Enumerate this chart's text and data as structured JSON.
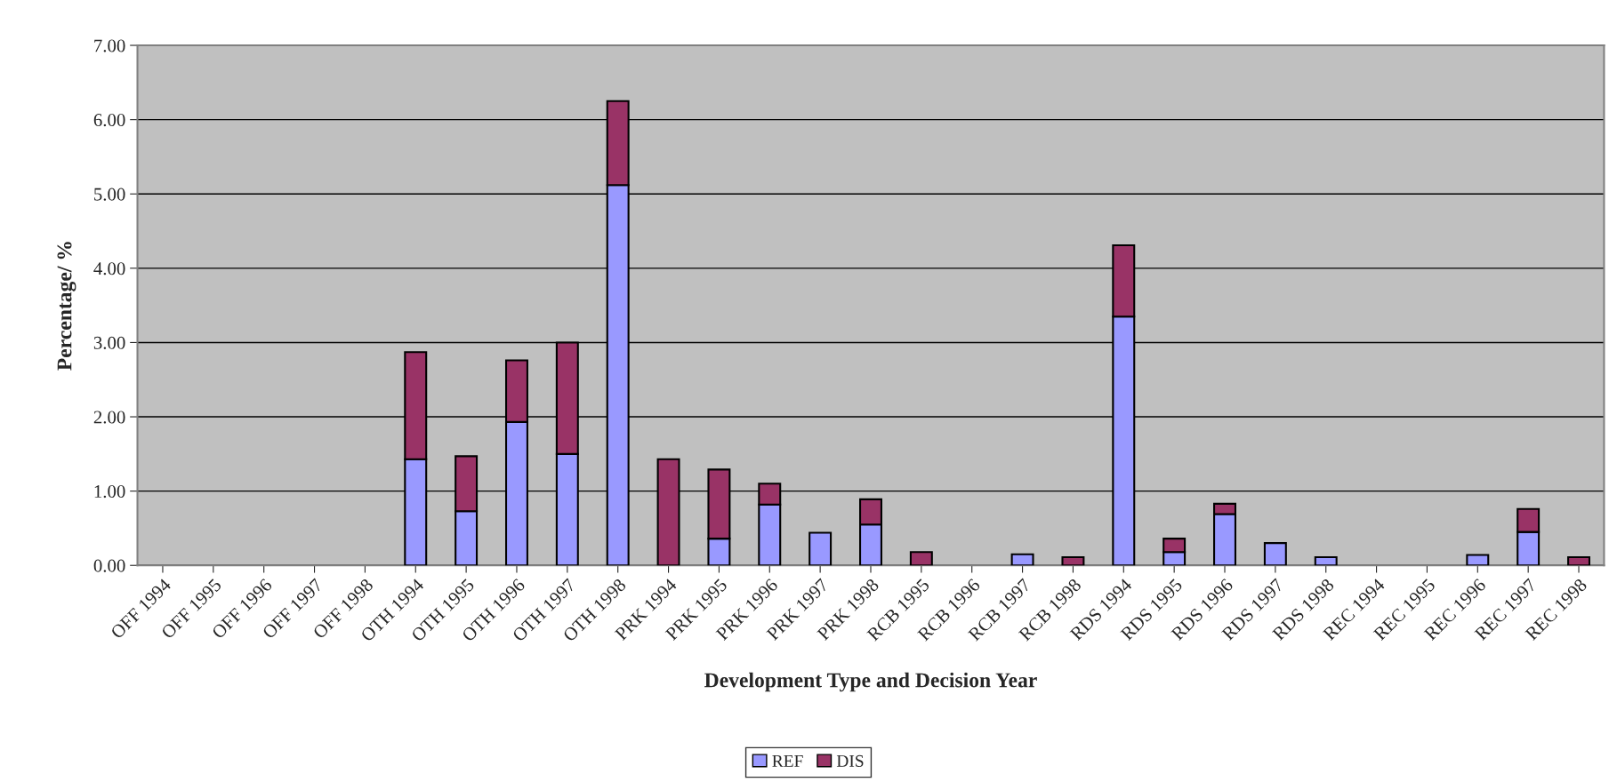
{
  "chart_data": {
    "type": "bar",
    "stacked": true,
    "xlabel": "Development Type and Decision Year",
    "ylabel": "Percentage/ %",
    "categories": [
      "OFF 1994",
      "OFF 1995",
      "OFF 1996",
      "OFF 1997",
      "OFF 1998",
      "OTH 1994",
      "OTH 1995",
      "OTH 1996",
      "OTH 1997",
      "OTH 1998",
      "PRK 1994",
      "PRK 1995",
      "PRK 1996",
      "PRK 1997",
      "PRK 1998",
      "RCB 1995",
      "RCB 1996",
      "RCB 1997",
      "RCB 1998",
      "RDS 1994",
      "RDS 1995",
      "RDS 1996",
      "RDS 1997",
      "RDS 1998",
      "REC 1994",
      "REC 1995",
      "REC 1996",
      "REC 1997",
      "REC 1998"
    ],
    "series": [
      {
        "name": "REF",
        "color": "#9999ff",
        "values": [
          null,
          null,
          null,
          null,
          null,
          1.43,
          0.73,
          1.93,
          1.5,
          5.12,
          null,
          0.36,
          0.82,
          0.44,
          0.55,
          null,
          null,
          0.15,
          null,
          3.35,
          0.18,
          0.69,
          0.3,
          0.11,
          null,
          null,
          0.14,
          0.45,
          null
        ]
      },
      {
        "name": "DIS",
        "color": "#993366",
        "values": [
          null,
          null,
          null,
          null,
          null,
          1.44,
          0.74,
          0.83,
          1.5,
          1.13,
          1.43,
          0.93,
          0.28,
          null,
          0.34,
          0.18,
          null,
          null,
          0.11,
          0.96,
          0.18,
          0.14,
          null,
          null,
          null,
          null,
          null,
          0.31,
          0.11
        ]
      }
    ],
    "ylim": [
      0,
      7
    ],
    "yticks": [
      {
        "value": 0,
        "label": "0.00"
      },
      {
        "value": 1,
        "label": "1.00"
      },
      {
        "value": 2,
        "label": "2.00"
      },
      {
        "value": 3,
        "label": "3.00"
      },
      {
        "value": 4,
        "label": "4.00"
      },
      {
        "value": 5,
        "label": "5.00"
      },
      {
        "value": 6,
        "label": "6.00"
      },
      {
        "value": 7,
        "label": "7.00"
      }
    ],
    "grid": "y",
    "legend": "bottom"
  }
}
